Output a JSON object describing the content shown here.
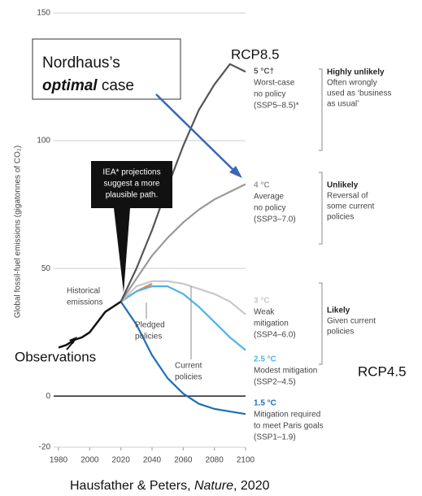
{
  "chart_data": {
    "type": "line",
    "ylabel": "Global fossil-fuel emissions (gigatonnes of CO₂)",
    "xlim": [
      1980,
      2100
    ],
    "xticks": [
      1980,
      2000,
      2020,
      2040,
      2060,
      2080,
      2100
    ],
    "ylim": [
      -20,
      150
    ],
    "yticks": [
      -20,
      0,
      50,
      100,
      150
    ],
    "grid": true,
    "series": [
      {
        "name": "Observations",
        "color": "#111111",
        "x": [
          1980,
          1985,
          1990,
          1995,
          2000,
          2005,
          2010,
          2015,
          2020
        ],
        "values": [
          19,
          20,
          22,
          23,
          25,
          29,
          33,
          35,
          37
        ]
      },
      {
        "name": "(SSP5–8.5)*",
        "color": "#555555",
        "temp": "5 °C†",
        "lines": [
          "Worst-case",
          "no policy"
        ],
        "x": [
          2020,
          2030,
          2040,
          2050,
          2060,
          2070,
          2080,
          2090,
          2100
        ],
        "values": [
          37,
          50,
          65,
          82,
          98,
          112,
          122,
          130,
          127
        ]
      },
      {
        "name": "(SSP3–7.0)",
        "color": "#999999",
        "temp": "4 °C",
        "lines": [
          "Average",
          "no policy"
        ],
        "x": [
          2020,
          2030,
          2040,
          2050,
          2060,
          2070,
          2080,
          2090,
          2100
        ],
        "values": [
          37,
          46,
          55,
          62,
          68,
          73,
          77,
          80,
          83
        ]
      },
      {
        "name": "(SSP4–6.0)",
        "color": "#c8c8c8",
        "temp": "3 °C",
        "lines": [
          "Weak",
          "mitigation"
        ],
        "x": [
          2020,
          2030,
          2040,
          2050,
          2060,
          2070,
          2080,
          2090,
          2100
        ],
        "values": [
          37,
          43,
          45,
          45,
          44,
          42,
          40,
          37,
          32
        ]
      },
      {
        "name": "(SSP2–4.5)",
        "color": "#4fb3e8",
        "temp": "2.5 °C",
        "lines": [
          "Modest mitigation"
        ],
        "x": [
          2020,
          2030,
          2040,
          2050,
          2060,
          2070,
          2080,
          2090,
          2100
        ],
        "values": [
          37,
          41,
          43,
          43,
          40,
          35,
          29,
          23,
          18
        ]
      },
      {
        "name": "(SSP1–1.9)",
        "color": "#1f6fb5",
        "temp": "1.5 °C",
        "lines": [
          "Mitigation required",
          "to meet Paris goals"
        ],
        "x": [
          2020,
          2030,
          2040,
          2050,
          2060,
          2070,
          2080,
          2090,
          2100
        ],
        "values": [
          37,
          28,
          16,
          7,
          1,
          -3,
          -5,
          -6,
          -7
        ]
      },
      {
        "name": "Pledged policies",
        "color": "#e8823a",
        "x": [
          2020,
          2030,
          2040
        ],
        "values": [
          37,
          41,
          44
        ]
      }
    ],
    "likelihood": [
      {
        "title": "Highly unlikely",
        "lines": [
          "Often wrongly",
          "used as ‘business",
          "as usual’"
        ]
      },
      {
        "title": "Unlikely",
        "lines": [
          "Reversal of",
          "some current",
          "policies"
        ]
      },
      {
        "title": "Likely",
        "lines": [
          "Given current",
          "policies"
        ]
      }
    ],
    "annotations": {
      "historical": [
        "Historical",
        "emissions"
      ],
      "pledged": [
        "Pledged",
        "policies"
      ],
      "current": [
        "Current",
        "policies"
      ],
      "iea": [
        "IEA* projections",
        "suggest a more",
        "plausible path."
      ],
      "nordhaus": [
        "Nordhaus’s",
        "optimal",
        "case"
      ],
      "rcp85": "RCP8.5",
      "rcp45": "RCP4.5",
      "citation": [
        "Hausfather & Peters, ",
        "Nature",
        ", 2020"
      ]
    }
  }
}
